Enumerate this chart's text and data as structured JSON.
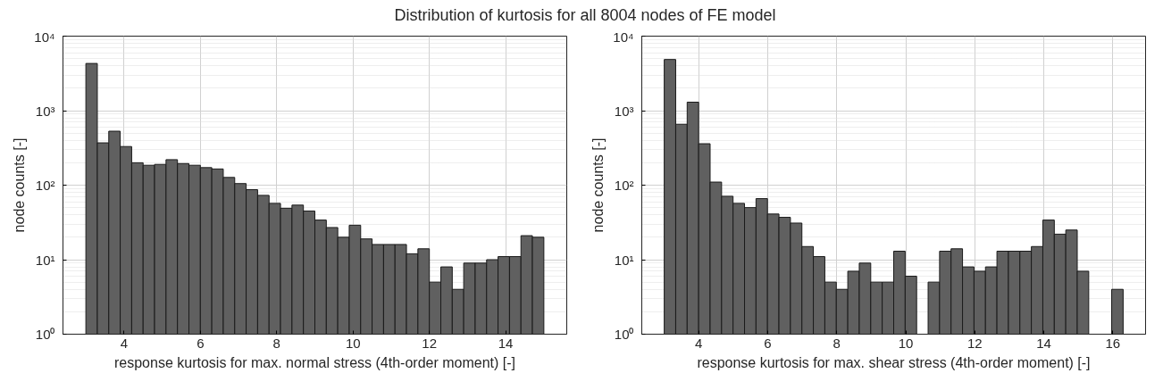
{
  "chart_data": [
    {
      "type": "histogram",
      "title": "Distribution of kurtosis for all 8004 nodes of FE model",
      "xlabel": "response kurtosis for max. normal stress (4th-order moment) [-]",
      "ylabel": "node counts [-]",
      "color": "#606060",
      "log": "y",
      "grid": true,
      "bins": [
        3,
        3.3,
        3.6,
        3.9,
        4.2,
        4.5,
        4.8,
        5.1,
        5.4,
        5.7,
        6,
        6.3,
        6.6,
        6.9,
        7.2,
        7.5,
        7.8,
        8.1,
        8.4,
        8.7,
        9,
        9.3,
        9.6,
        9.9,
        10.2,
        10.5,
        10.8,
        11.1,
        11.4,
        11.7,
        12,
        12.3,
        12.6,
        12.9,
        13.2,
        13.5,
        13.8,
        14.1,
        14.4,
        14.7,
        15
      ],
      "values": [
        4300,
        370,
        530,
        330,
        200,
        185,
        190,
        220,
        195,
        185,
        172,
        165,
        127,
        105,
        87,
        73,
        57,
        49,
        54,
        45,
        34,
        27,
        20,
        29,
        19,
        16,
        16,
        16,
        12,
        14,
        5,
        8,
        4,
        9,
        9,
        10,
        11,
        11,
        21,
        20
      ],
      "xlim": [
        2.4,
        15.6
      ],
      "xticks": [
        4,
        6,
        8,
        10,
        12,
        14
      ],
      "ylim": [
        1,
        10000
      ],
      "yticks": [
        {
          "value": 1,
          "label": "10⁰"
        },
        {
          "value": 10,
          "label": "10¹"
        },
        {
          "value": 100,
          "label": "10²"
        },
        {
          "value": 1000,
          "label": "10³"
        },
        {
          "value": 10000,
          "label": "10⁴"
        }
      ]
    },
    {
      "type": "histogram",
      "xlabel": "response kurtosis for max. shear stress (4th-order moment) [-]",
      "ylabel": "node counts [-]",
      "color": "#606060",
      "log": "y",
      "grid": true,
      "bins": [
        3,
        3.3325,
        3.665,
        3.9975,
        4.33,
        4.6625,
        4.995,
        5.3275,
        5.66,
        5.9925,
        6.325,
        6.6575,
        6.99,
        7.3225,
        7.655,
        7.9875,
        8.32,
        8.6525,
        8.985,
        9.3175,
        9.65,
        9.9825,
        10.315,
        10.6475,
        10.98,
        11.3125,
        11.645,
        11.9775,
        12.31,
        12.6425,
        12.975,
        13.3075,
        13.64,
        13.9725,
        14.305,
        14.6375,
        14.97,
        15.3025,
        15.635,
        15.9675,
        16.3
      ],
      "values": [
        4860,
        657,
        1300,
        360,
        110,
        71,
        57,
        50,
        66,
        41,
        37,
        31,
        15,
        11,
        5,
        4,
        7,
        9,
        5,
        5,
        13,
        6,
        1,
        5,
        13,
        14,
        8,
        7,
        8,
        13,
        13,
        13,
        15,
        34,
        22,
        25,
        7,
        null,
        1,
        4
      ],
      "xlim": [
        2.35,
        16.95
      ],
      "xticks": [
        4,
        6,
        8,
        10,
        12,
        14,
        16
      ],
      "ylim": [
        1,
        10000
      ],
      "yticks": [
        {
          "value": 1,
          "label": "10⁰"
        },
        {
          "value": 10,
          "label": "10¹"
        },
        {
          "value": 100,
          "label": "10²"
        },
        {
          "value": 1000,
          "label": "10³"
        },
        {
          "value": 10000,
          "label": "10⁴"
        }
      ]
    }
  ]
}
